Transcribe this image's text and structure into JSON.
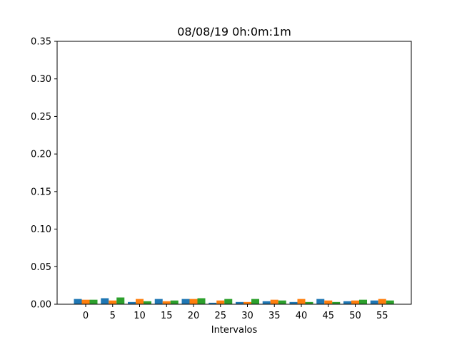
{
  "chart_data": {
    "type": "bar",
    "title": "08/08/19 0h:0m:1m",
    "xlabel": "Intervalos",
    "ylabel": "",
    "ylim": [
      0,
      0.35
    ],
    "yticks": [
      "0.00",
      "0.05",
      "0.10",
      "0.15",
      "0.20",
      "0.25",
      "0.30",
      "0.35"
    ],
    "categories": [
      "0",
      "5",
      "10",
      "15",
      "20",
      "25",
      "30",
      "35",
      "40",
      "45",
      "50",
      "55"
    ],
    "series": [
      {
        "color": "#1f77b4",
        "values": [
          0.007,
          0.008,
          0.003,
          0.007,
          0.007,
          0.002,
          0.003,
          0.004,
          0.003,
          0.007,
          0.004,
          0.005
        ]
      },
      {
        "color": "#ff7f0e",
        "values": [
          0.006,
          0.005,
          0.007,
          0.004,
          0.007,
          0.005,
          0.003,
          0.006,
          0.007,
          0.005,
          0.005,
          0.007
        ]
      },
      {
        "color": "#2ca02c",
        "values": [
          0.006,
          0.009,
          0.004,
          0.005,
          0.008,
          0.007,
          0.007,
          0.005,
          0.003,
          0.003,
          0.006,
          0.005
        ]
      }
    ],
    "grid": false,
    "legend": "none"
  }
}
